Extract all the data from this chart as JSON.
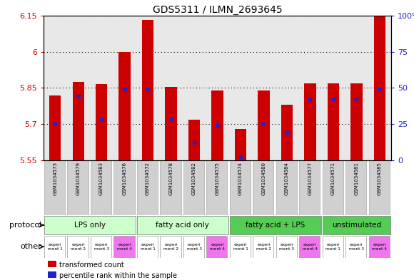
{
  "title": "GDS5311 / ILMN_2693645",
  "samples": [
    "GSM1034573",
    "GSM1034579",
    "GSM1034583",
    "GSM1034576",
    "GSM1034572",
    "GSM1034578",
    "GSM1034582",
    "GSM1034575",
    "GSM1034574",
    "GSM1034580",
    "GSM1034584",
    "GSM1034577",
    "GSM1034571",
    "GSM1034581",
    "GSM1034585"
  ],
  "bar_values": [
    5.82,
    5.875,
    5.865,
    6.0,
    6.13,
    5.855,
    5.72,
    5.84,
    5.68,
    5.84,
    5.78,
    5.87,
    5.87,
    5.87,
    6.15
  ],
  "dot_values": [
    5.7,
    5.815,
    5.72,
    5.845,
    5.845,
    5.72,
    5.625,
    5.695,
    5.565,
    5.7,
    5.665,
    5.8,
    5.805,
    5.805,
    5.845
  ],
  "ylim_left": [
    5.55,
    6.15
  ],
  "yticks_left": [
    5.55,
    5.7,
    5.85,
    6.0,
    6.15
  ],
  "ytick_labels_left": [
    "5.55",
    "5.7",
    "5.85",
    "6",
    "6.15"
  ],
  "ylim_right": [
    0,
    100
  ],
  "yticks_right": [
    0,
    25,
    50,
    75,
    100
  ],
  "ytick_labels_right": [
    "0",
    "25",
    "50",
    "75",
    "100%"
  ],
  "bar_bottom": 5.55,
  "bar_color": "#cc0000",
  "dot_color": "#2222cc",
  "groups": [
    {
      "label": "LPS only",
      "start": 0,
      "end": 4,
      "color": "#ccffcc"
    },
    {
      "label": "fatty acid only",
      "start": 4,
      "end": 8,
      "color": "#ccffcc"
    },
    {
      "label": "fatty acid + LPS",
      "start": 8,
      "end": 12,
      "color": "#55cc55"
    },
    {
      "label": "unstimulated",
      "start": 12,
      "end": 15,
      "color": "#55cc55"
    }
  ],
  "other_colors": [
    "#ffffff",
    "#ffffff",
    "#ffffff",
    "#ee77ee",
    "#ffffff",
    "#ffffff",
    "#ffffff",
    "#ee77ee",
    "#ffffff",
    "#ffffff",
    "#ffffff",
    "#ee77ee",
    "#ffffff",
    "#ffffff",
    "#ee77ee"
  ],
  "other_texts": [
    "experi\nment 1",
    "experi\nment 2",
    "experi\nment 3",
    "experi\nment 4",
    "experi\nment 1",
    "experi\nment 2",
    "experi\nment 3",
    "experi\nment 4",
    "experi\nment 1",
    "experi\nment 2",
    "experi\nment 3",
    "experi\nment 4",
    "experi\nment 1",
    "experi\nment 3",
    "experi\nment 4"
  ],
  "sample_box_color": "#d0d0d0",
  "plot_bg": "#e8e8e8",
  "legend_items": [
    {
      "color": "#cc0000",
      "label": "transformed count"
    },
    {
      "color": "#2222cc",
      "label": "percentile rank within the sample"
    }
  ]
}
